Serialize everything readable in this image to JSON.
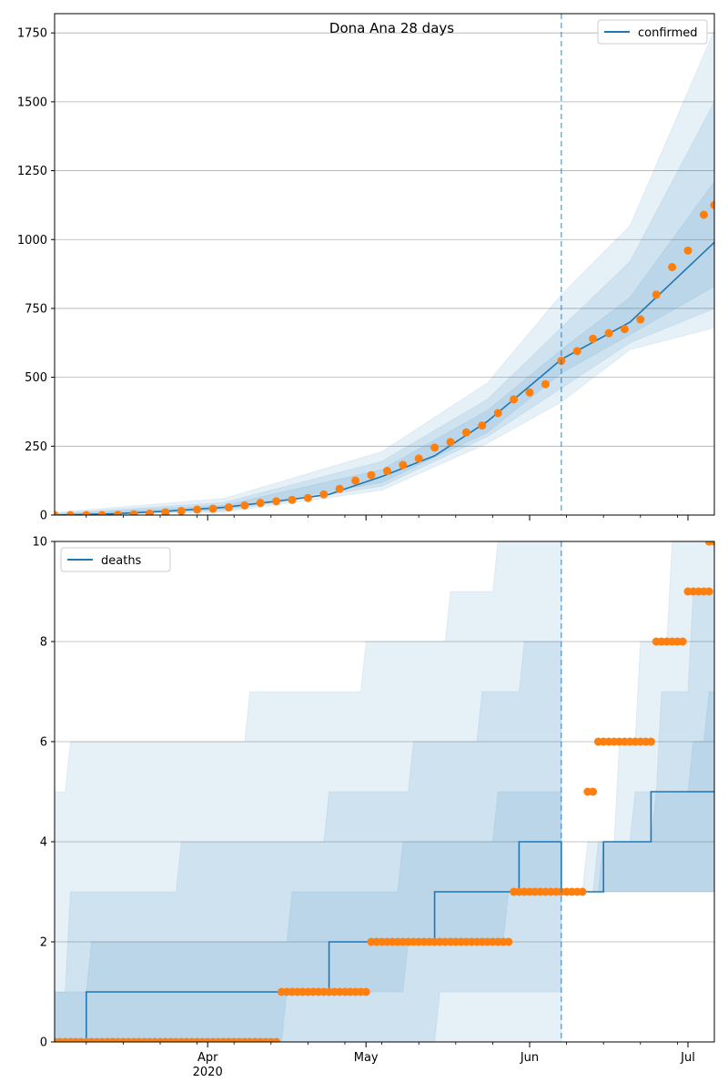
{
  "chart_data": [
    {
      "type": "line",
      "title": "Dona Ana 28 days",
      "xlabel": "",
      "ylabel": "",
      "x_range": [
        "2020-03-03",
        "2020-07-06"
      ],
      "ylim": [
        0,
        1820
      ],
      "y_ticks": [
        0,
        250,
        500,
        750,
        1000,
        1250,
        1500,
        1750
      ],
      "x_tick_labels": [
        {
          "date": "2020-04-01",
          "label": "Apr",
          "sublabel": "2020"
        },
        {
          "date": "2020-05-01",
          "label": "May",
          "sublabel": ""
        },
        {
          "date": "2020-06-01",
          "label": "Jun",
          "sublabel": ""
        },
        {
          "date": "2020-07-01",
          "label": "Jul",
          "sublabel": ""
        }
      ],
      "forecast_start": "2020-06-07",
      "grid": "y",
      "legend": {
        "position": "top-right",
        "entries": [
          "confirmed"
        ]
      },
      "colors": {
        "model": "#1f77b4",
        "observed": "#ff7f0e",
        "band": "#1f77b4"
      },
      "model_line": {
        "name": "confirmed",
        "points": [
          [
            "2020-03-03",
            0
          ],
          [
            "2020-03-15",
            5
          ],
          [
            "2020-03-25",
            15
          ],
          [
            "2020-04-04",
            28
          ],
          [
            "2020-04-14",
            50
          ],
          [
            "2020-04-24",
            75
          ],
          [
            "2020-05-04",
            140
          ],
          [
            "2020-05-14",
            215
          ],
          [
            "2020-05-24",
            340
          ],
          [
            "2020-06-03",
            500
          ],
          [
            "2020-06-07",
            565
          ],
          [
            "2020-06-20",
            700
          ],
          [
            "2020-07-06",
            990
          ]
        ]
      },
      "bands": [
        {
          "upper": [
            [
              "2020-03-03",
              10
            ],
            [
              "2020-04-04",
              60
            ],
            [
              "2020-05-04",
              230
            ],
            [
              "2020-05-24",
              480
            ],
            [
              "2020-06-07",
              800
            ],
            [
              "2020-06-20",
              1050
            ],
            [
              "2020-07-06",
              1760
            ]
          ],
          "lower": [
            [
              "2020-03-03",
              0
            ],
            [
              "2020-04-04",
              10
            ],
            [
              "2020-05-04",
              90
            ],
            [
              "2020-05-24",
              260
            ],
            [
              "2020-06-07",
              410
            ],
            [
              "2020-06-20",
              600
            ],
            [
              "2020-07-06",
              680
            ]
          ]
        },
        {
          "upper": [
            [
              "2020-03-03",
              6
            ],
            [
              "2020-04-04",
              45
            ],
            [
              "2020-05-04",
              195
            ],
            [
              "2020-05-24",
              420
            ],
            [
              "2020-06-07",
              680
            ],
            [
              "2020-06-20",
              920
            ],
            [
              "2020-07-06",
              1500
            ]
          ],
          "lower": [
            [
              "2020-03-03",
              0
            ],
            [
              "2020-04-04",
              15
            ],
            [
              "2020-05-04",
              105
            ],
            [
              "2020-05-24",
              285
            ],
            [
              "2020-06-07",
              460
            ],
            [
              "2020-06-20",
              625
            ],
            [
              "2020-07-06",
              750
            ]
          ]
        },
        {
          "upper": [
            [
              "2020-03-03",
              3
            ],
            [
              "2020-04-04",
              35
            ],
            [
              "2020-05-04",
              165
            ],
            [
              "2020-05-24",
              380
            ],
            [
              "2020-06-07",
              600
            ],
            [
              "2020-06-20",
              790
            ],
            [
              "2020-07-06",
              1210
            ]
          ],
          "lower": [
            [
              "2020-03-03",
              0
            ],
            [
              "2020-04-04",
              20
            ],
            [
              "2020-05-04",
              118
            ],
            [
              "2020-05-24",
              300
            ],
            [
              "2020-06-07",
              515
            ],
            [
              "2020-06-20",
              655
            ],
            [
              "2020-07-06",
              830
            ]
          ]
        }
      ],
      "observed": [
        [
          "2020-03-03",
          0
        ],
        [
          "2020-03-06",
          0
        ],
        [
          "2020-03-09",
          0
        ],
        [
          "2020-03-12",
          0
        ],
        [
          "2020-03-15",
          1
        ],
        [
          "2020-03-18",
          3
        ],
        [
          "2020-03-21",
          5
        ],
        [
          "2020-03-24",
          10
        ],
        [
          "2020-03-27",
          15
        ],
        [
          "2020-03-30",
          20
        ],
        [
          "2020-04-02",
          23
        ],
        [
          "2020-04-05",
          28
        ],
        [
          "2020-04-08",
          35
        ],
        [
          "2020-04-11",
          44
        ],
        [
          "2020-04-14",
          50
        ],
        [
          "2020-04-17",
          55
        ],
        [
          "2020-04-20",
          62
        ],
        [
          "2020-04-23",
          75
        ],
        [
          "2020-04-26",
          95
        ],
        [
          "2020-04-29",
          125
        ],
        [
          "2020-05-02",
          145
        ],
        [
          "2020-05-05",
          160
        ],
        [
          "2020-05-08",
          182
        ],
        [
          "2020-05-11",
          205
        ],
        [
          "2020-05-14",
          245
        ],
        [
          "2020-05-17",
          265
        ],
        [
          "2020-05-20",
          300
        ],
        [
          "2020-05-23",
          325
        ],
        [
          "2020-05-26",
          370
        ],
        [
          "2020-05-29",
          420
        ],
        [
          "2020-06-01",
          445
        ],
        [
          "2020-06-04",
          475
        ],
        [
          "2020-06-07",
          560
        ],
        [
          "2020-06-10",
          595
        ],
        [
          "2020-06-13",
          640
        ],
        [
          "2020-06-16",
          660
        ],
        [
          "2020-06-19",
          675
        ],
        [
          "2020-06-22",
          710
        ],
        [
          "2020-06-25",
          800
        ],
        [
          "2020-06-28",
          900
        ],
        [
          "2020-07-01",
          960
        ],
        [
          "2020-07-04",
          1090
        ],
        [
          "2020-07-06",
          1125
        ]
      ]
    },
    {
      "type": "line",
      "title": "",
      "xlabel": "",
      "ylabel": "",
      "x_range": [
        "2020-03-03",
        "2020-07-06"
      ],
      "ylim": [
        0,
        10
      ],
      "y_ticks": [
        0,
        2,
        4,
        6,
        8,
        10
      ],
      "x_tick_labels": [
        {
          "date": "2020-04-01",
          "label": "Apr",
          "sublabel": "2020"
        },
        {
          "date": "2020-05-01",
          "label": "May",
          "sublabel": ""
        },
        {
          "date": "2020-06-01",
          "label": "Jun",
          "sublabel": ""
        },
        {
          "date": "2020-07-01",
          "label": "Jul",
          "sublabel": ""
        }
      ],
      "forecast_start": "2020-06-07",
      "grid": "y",
      "legend": {
        "position": "top-left",
        "entries": [
          "deaths"
        ]
      },
      "colors": {
        "model": "#1f77b4",
        "observed": "#ff7f0e",
        "band": "#1f77b4"
      },
      "model_line": {
        "name": "deaths",
        "points": [
          [
            "2020-03-03",
            0
          ],
          [
            "2020-03-09",
            0
          ],
          [
            "2020-03-09",
            1
          ],
          [
            "2020-04-24",
            1
          ],
          [
            "2020-04-24",
            2
          ],
          [
            "2020-05-14",
            2
          ],
          [
            "2020-05-14",
            3
          ],
          [
            "2020-05-30",
            3
          ],
          [
            "2020-05-30",
            4
          ],
          [
            "2020-06-07",
            4
          ],
          [
            "2020-06-07",
            3
          ],
          [
            "2020-06-15",
            3
          ],
          [
            "2020-06-15",
            4
          ],
          [
            "2020-06-24",
            4
          ],
          [
            "2020-06-24",
            5
          ],
          [
            "2020-07-06",
            5
          ]
        ]
      },
      "bands": [
        {
          "upper": [
            [
              "2020-03-03",
              5
            ],
            [
              "2020-03-05",
              5
            ],
            [
              "2020-03-06",
              6
            ],
            [
              "2020-04-08",
              6
            ],
            [
              "2020-04-09",
              7
            ],
            [
              "2020-04-30",
              7
            ],
            [
              "2020-05-01",
              8
            ],
            [
              "2020-05-16",
              8
            ],
            [
              "2020-05-17",
              9
            ],
            [
              "2020-05-25",
              9
            ],
            [
              "2020-05-26",
              10
            ],
            [
              "2020-06-07",
              10
            ]
          ],
          "lower": [
            [
              "2020-03-03",
              0
            ],
            [
              "2020-06-07",
              0
            ]
          ]
        },
        {
          "upper": [
            [
              "2020-03-03",
              1
            ],
            [
              "2020-03-05",
              1
            ],
            [
              "2020-03-06",
              3
            ],
            [
              "2020-03-26",
              3
            ],
            [
              "2020-03-27",
              4
            ],
            [
              "2020-04-23",
              4
            ],
            [
              "2020-04-24",
              5
            ],
            [
              "2020-05-09",
              5
            ],
            [
              "2020-05-10",
              6
            ],
            [
              "2020-05-22",
              6
            ],
            [
              "2020-05-23",
              7
            ],
            [
              "2020-05-30",
              7
            ],
            [
              "2020-05-31",
              8
            ],
            [
              "2020-06-07",
              8
            ]
          ],
          "lower": [
            [
              "2020-03-03",
              0
            ],
            [
              "2020-05-14",
              0
            ],
            [
              "2020-05-15",
              1
            ],
            [
              "2020-06-07",
              1
            ]
          ]
        },
        {
          "upper": [
            [
              "2020-03-03",
              1
            ],
            [
              "2020-03-09",
              1
            ],
            [
              "2020-03-10",
              2
            ],
            [
              "2020-04-16",
              2
            ],
            [
              "2020-04-17",
              3
            ],
            [
              "2020-05-07",
              3
            ],
            [
              "2020-05-08",
              4
            ],
            [
              "2020-05-25",
              4
            ],
            [
              "2020-05-26",
              5
            ],
            [
              "2020-06-07",
              5
            ]
          ],
          "lower": [
            [
              "2020-03-03",
              0
            ],
            [
              "2020-04-15",
              0
            ],
            [
              "2020-04-16",
              1
            ],
            [
              "2020-05-08",
              1
            ],
            [
              "2020-05-09",
              2
            ],
            [
              "2020-05-27",
              2
            ],
            [
              "2020-05-28",
              3
            ],
            [
              "2020-06-07",
              3
            ]
          ]
        },
        {
          "upper": [
            [
              "2020-06-07",
              3
            ],
            [
              "2020-06-11",
              3
            ],
            [
              "2020-06-12",
              4
            ],
            [
              "2020-06-17",
              4
            ],
            [
              "2020-06-18",
              6
            ],
            [
              "2020-06-21",
              6
            ],
            [
              "2020-06-22",
              8
            ],
            [
              "2020-06-27",
              8
            ],
            [
              "2020-06-28",
              10
            ],
            [
              "2020-07-06",
              10
            ]
          ],
          "lower": [
            [
              "2020-06-07",
              3
            ],
            [
              "2020-07-06",
              3
            ]
          ]
        },
        {
          "upper": [
            [
              "2020-06-07",
              3
            ],
            [
              "2020-06-13",
              3
            ],
            [
              "2020-06-14",
              4
            ],
            [
              "2020-06-20",
              4
            ],
            [
              "2020-06-21",
              5
            ],
            [
              "2020-06-25",
              5
            ],
            [
              "2020-06-26",
              7
            ],
            [
              "2020-07-01",
              7
            ],
            [
              "2020-07-02",
              9
            ],
            [
              "2020-07-06",
              9
            ]
          ],
          "lower": [
            [
              "2020-06-07",
              3
            ],
            [
              "2020-07-06",
              3
            ]
          ]
        },
        {
          "upper": [
            [
              "2020-06-07",
              3
            ],
            [
              "2020-06-14",
              3
            ],
            [
              "2020-06-15",
              4
            ],
            [
              "2020-06-24",
              4
            ],
            [
              "2020-06-25",
              5
            ],
            [
              "2020-07-01",
              5
            ],
            [
              "2020-07-02",
              6
            ],
            [
              "2020-07-04",
              6
            ],
            [
              "2020-07-05",
              7
            ],
            [
              "2020-07-06",
              7
            ]
          ],
          "lower": [
            [
              "2020-06-07",
              3
            ],
            [
              "2020-07-06",
              3
            ]
          ]
        }
      ],
      "observed_segments": [
        {
          "from": "2020-03-03",
          "to": "2020-04-14",
          "value": 0
        },
        {
          "from": "2020-04-15",
          "to": "2020-05-01",
          "value": 1
        },
        {
          "from": "2020-05-02",
          "to": "2020-05-28",
          "value": 2
        },
        {
          "from": "2020-05-29",
          "to": "2020-06-11",
          "value": 3
        },
        {
          "from": "2020-06-12",
          "to": "2020-06-13",
          "value": 5
        },
        {
          "from": "2020-06-14",
          "to": "2020-06-24",
          "value": 6
        },
        {
          "from": "2020-06-25",
          "to": "2020-06-30",
          "value": 8
        },
        {
          "from": "2020-07-01",
          "to": "2020-07-05",
          "value": 9
        },
        {
          "from": "2020-07-05",
          "to": "2020-07-06",
          "value": 10
        }
      ]
    }
  ]
}
